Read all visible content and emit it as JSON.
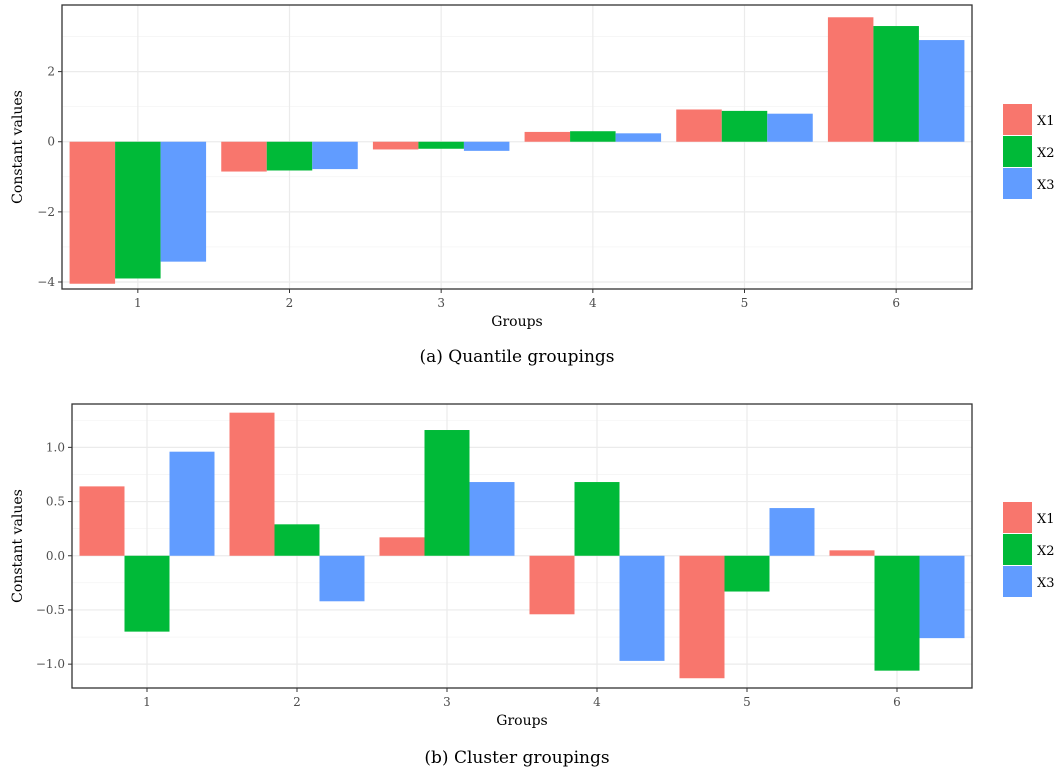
{
  "chart_data": [
    {
      "type": "bar",
      "caption": "(a) Quantile groupings",
      "xlabel": "Groups",
      "ylabel": "Constant values",
      "categories": [
        "1",
        "2",
        "3",
        "4",
        "5",
        "6"
      ],
      "yticks": [
        -4,
        -2,
        0,
        2
      ],
      "ytick_labels": [
        "−4",
        "−2",
        "0",
        "2"
      ],
      "ylim": [
        -4.2,
        3.9
      ],
      "grid": true,
      "legend_position": "right",
      "series": [
        {
          "name": "X1",
          "color": "#F8766D",
          "values": [
            -4.05,
            -0.85,
            -0.22,
            0.28,
            0.92,
            3.55
          ]
        },
        {
          "name": "X2",
          "color": "#00BA38",
          "values": [
            -3.9,
            -0.82,
            -0.2,
            0.3,
            0.88,
            3.3
          ]
        },
        {
          "name": "X3",
          "color": "#619CFF",
          "values": [
            -3.42,
            -0.78,
            -0.26,
            0.24,
            0.8,
            2.9
          ]
        }
      ]
    },
    {
      "type": "bar",
      "caption": "(b) Cluster groupings",
      "xlabel": "Groups",
      "ylabel": "Constant values",
      "categories": [
        "1",
        "2",
        "3",
        "4",
        "5",
        "6"
      ],
      "yticks": [
        -1.0,
        -0.5,
        0.0,
        0.5,
        1.0
      ],
      "ytick_labels": [
        "−1.0",
        "−0.5",
        "0.0",
        "0.5",
        "1.0"
      ],
      "ylim": [
        -1.22,
        1.4
      ],
      "grid": true,
      "legend_position": "right",
      "series": [
        {
          "name": "X1",
          "color": "#F8766D",
          "values": [
            0.64,
            1.32,
            0.17,
            -0.54,
            -1.13,
            0.05
          ]
        },
        {
          "name": "X2",
          "color": "#00BA38",
          "values": [
            -0.7,
            0.29,
            1.16,
            0.68,
            -0.33,
            -1.06
          ]
        },
        {
          "name": "X3",
          "color": "#619CFF",
          "values": [
            0.96,
            -0.42,
            0.68,
            -0.97,
            0.44,
            -0.76
          ]
        }
      ]
    }
  ]
}
